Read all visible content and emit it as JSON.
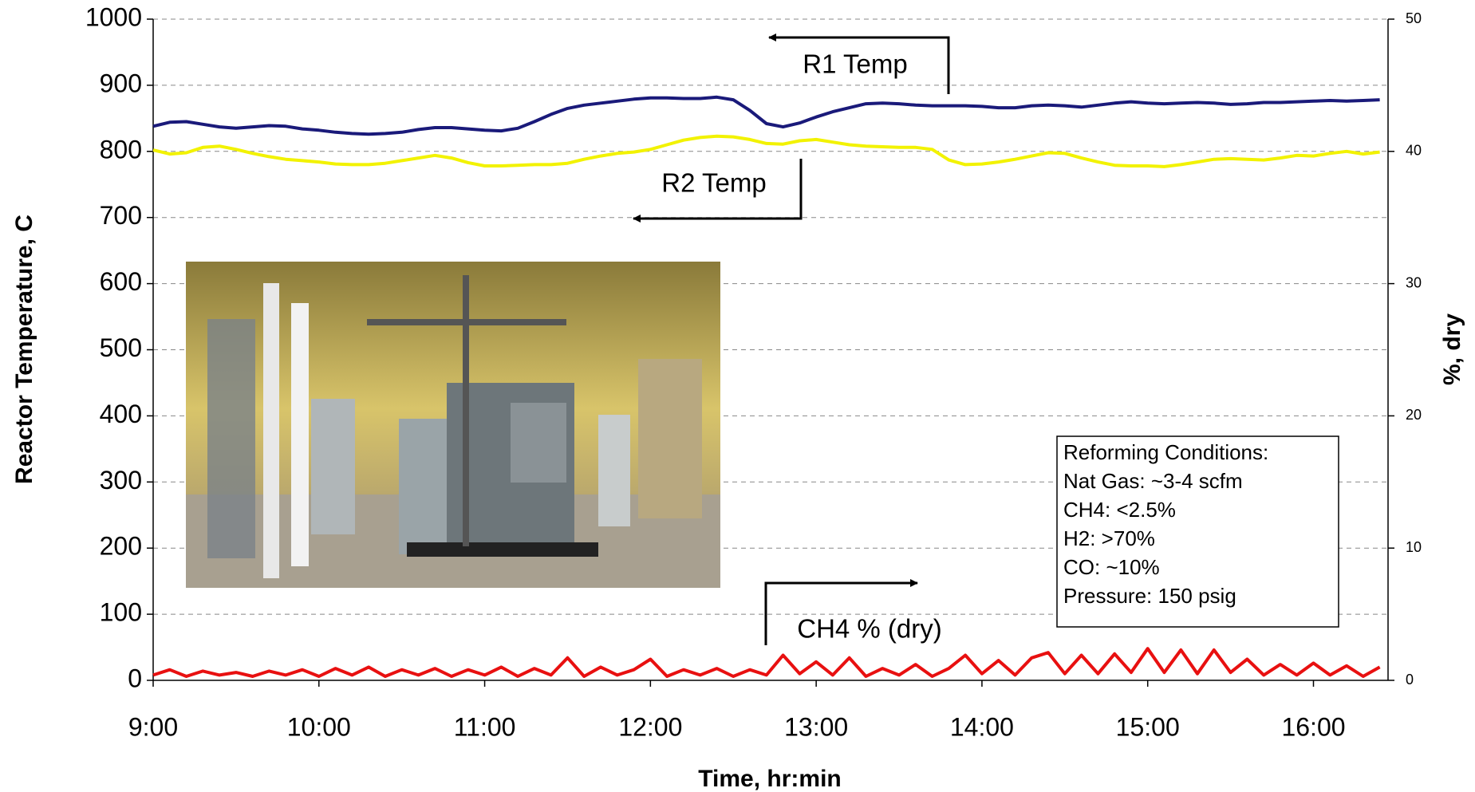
{
  "chart_data": {
    "type": "line",
    "x_label": "Time, hr:min",
    "y_label": "Reactor Temperature, C",
    "y2_label": "%, dry",
    "xlim": [
      9,
      16.45
    ],
    "xticks": [
      {
        "value": 9,
        "label": "9:00"
      },
      {
        "value": 10,
        "label": "10:00"
      },
      {
        "value": 11,
        "label": "11:00"
      },
      {
        "value": 12,
        "label": "12:00"
      },
      {
        "value": 13,
        "label": "13:00"
      },
      {
        "value": 14,
        "label": "14:00"
      },
      {
        "value": 15,
        "label": "15:00"
      },
      {
        "value": 16,
        "label": "16:00"
      }
    ],
    "ylim": [
      0,
      1000
    ],
    "yticks": [
      0,
      100,
      200,
      300,
      400,
      500,
      600,
      700,
      800,
      900,
      1000
    ],
    "y2lim": [
      0,
      50
    ],
    "y2ticks": [
      0,
      10,
      20,
      30,
      40,
      50
    ],
    "grid": true,
    "x": [
      9.0,
      9.1,
      9.2,
      9.3,
      9.4,
      9.5,
      9.6,
      9.7,
      9.8,
      9.9,
      10.0,
      10.1,
      10.2,
      10.3,
      10.4,
      10.5,
      10.6,
      10.7,
      10.8,
      10.9,
      11.0,
      11.1,
      11.2,
      11.3,
      11.4,
      11.5,
      11.6,
      11.7,
      11.8,
      11.9,
      12.0,
      12.1,
      12.2,
      12.3,
      12.4,
      12.5,
      12.6,
      12.7,
      12.8,
      12.9,
      13.0,
      13.1,
      13.2,
      13.3,
      13.4,
      13.5,
      13.6,
      13.7,
      13.8,
      13.9,
      14.0,
      14.1,
      14.2,
      14.3,
      14.4,
      14.5,
      14.6,
      14.7,
      14.8,
      14.9,
      15.0,
      15.1,
      15.2,
      15.3,
      15.4,
      15.5,
      15.6,
      15.7,
      15.8,
      15.9,
      16.0,
      16.1,
      16.2,
      16.3,
      16.4
    ],
    "series": [
      {
        "name": "R1 Temp",
        "color": "#1a1a7a",
        "values": [
          838,
          844,
          845,
          841,
          837,
          835,
          837,
          839,
          838,
          834,
          832,
          829,
          827,
          826,
          827,
          829,
          833,
          836,
          836,
          834,
          832,
          831,
          835,
          845,
          856,
          865,
          870,
          873,
          876,
          879,
          881,
          881,
          880,
          880,
          882,
          878,
          862,
          842,
          837,
          843,
          852,
          860,
          866,
          872,
          873,
          872,
          870,
          869,
          869,
          869,
          868,
          866,
          866,
          869,
          870,
          869,
          867,
          870,
          873,
          875,
          873,
          872,
          873,
          874,
          873,
          871,
          872,
          874,
          874,
          875,
          876,
          877,
          876,
          877,
          878
        ]
      },
      {
        "name": "R2 Temp",
        "color": "#f2f200",
        "values": [
          802,
          796,
          798,
          806,
          808,
          803,
          797,
          792,
          788,
          786,
          784,
          781,
          780,
          780,
          782,
          786,
          790,
          794,
          790,
          783,
          778,
          778,
          779,
          780,
          780,
          782,
          788,
          793,
          797,
          799,
          803,
          810,
          817,
          821,
          823,
          822,
          818,
          812,
          811,
          816,
          818,
          814,
          810,
          808,
          807,
          806,
          806,
          803,
          787,
          780,
          781,
          784,
          788,
          793,
          798,
          797,
          790,
          784,
          779,
          778,
          778,
          777,
          780,
          784,
          788,
          789,
          788,
          787,
          790,
          794,
          793,
          797,
          800,
          796,
          799
        ]
      },
      {
        "name": "CH4 % (dry)",
        "color": "#e81010",
        "axis": "y2",
        "values": [
          0.4,
          0.8,
          0.3,
          0.7,
          0.4,
          0.6,
          0.3,
          0.7,
          0.4,
          0.8,
          0.3,
          0.9,
          0.4,
          1.0,
          0.3,
          0.8,
          0.4,
          0.9,
          0.3,
          0.8,
          0.4,
          1.0,
          0.3,
          0.9,
          0.4,
          1.7,
          0.3,
          1.0,
          0.4,
          0.8,
          1.6,
          0.3,
          0.8,
          0.4,
          0.9,
          0.3,
          0.8,
          0.4,
          1.9,
          0.5,
          1.4,
          0.4,
          1.7,
          0.3,
          0.9,
          0.4,
          1.2,
          0.3,
          0.9,
          1.9,
          0.5,
          1.5,
          0.4,
          1.7,
          2.1,
          0.5,
          1.9,
          0.5,
          2.0,
          0.6,
          2.4,
          0.6,
          2.3,
          0.5,
          2.3,
          0.6,
          1.6,
          0.4,
          1.2,
          0.4,
          1.3,
          0.4,
          1.1,
          0.3,
          1.0
        ]
      }
    ],
    "annotations": [
      "Reforming Conditions:",
      "Nat Gas: ~3-4 scfm",
      "CH4: <2.5%",
      "H2: >70%",
      "CO: ~10%",
      "Pressure: 150 psig"
    ]
  }
}
